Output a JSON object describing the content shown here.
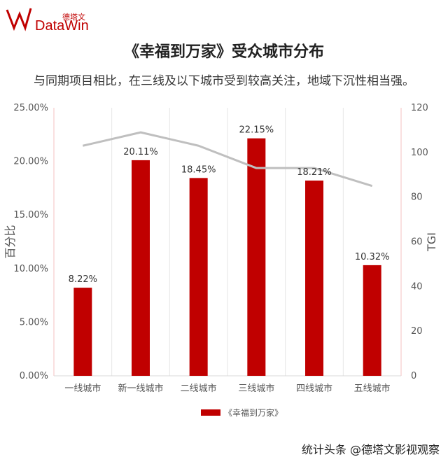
{
  "logo": {
    "brand_cn": "德塔文",
    "brand_en": "DataWin"
  },
  "header": {
    "title": "《幸福到万家》受众城市分布",
    "subtitle": "与同期项目相比，在三线及以下城市受到较高关注，地域下沉性相当强。"
  },
  "chart_data": {
    "type": "bar",
    "categories": [
      "一线城市",
      "新一线城市",
      "二线城市",
      "三线城市",
      "四线城市",
      "五线城市"
    ],
    "series": [
      {
        "name": "《幸福到万家》",
        "values": [
          8.22,
          20.11,
          18.45,
          22.15,
          18.21,
          10.32
        ],
        "color": "#c00000",
        "axis": "left"
      },
      {
        "values": [
          103,
          109,
          103,
          93,
          93,
          85
        ],
        "color": "#bfbfbf",
        "type": "line",
        "axis": "right"
      }
    ],
    "data_labels": [
      "8.22%",
      "20.11%",
      "18.45%",
      "22.15%",
      "18.21%",
      "10.32%"
    ],
    "ylabel": "百分比",
    "y2label": "TGI",
    "ylim": [
      0,
      25
    ],
    "y2lim": [
      0,
      120
    ],
    "yticks": [
      "0.00%",
      "5.00%",
      "10.00%",
      "15.00%",
      "20.00%",
      "25.00%"
    ],
    "y2ticks": [
      "0",
      "20",
      "40",
      "60",
      "80",
      "100",
      "120"
    ],
    "grid": "vertical",
    "legend_position": "bottom"
  },
  "watermark": "统计头条 @德塔文影视观察"
}
